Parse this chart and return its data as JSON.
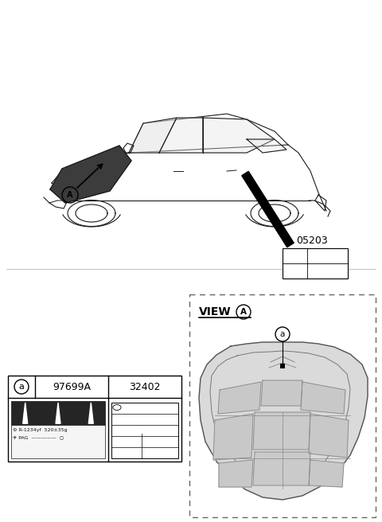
{
  "bg_color": "#ffffff",
  "part_label_number": "05203",
  "part_row_circle": "a",
  "part_row_left": "97699A",
  "part_row_right": "32402",
  "view_label": "VIEW",
  "view_circle": "A",
  "hood_circle": "a"
}
